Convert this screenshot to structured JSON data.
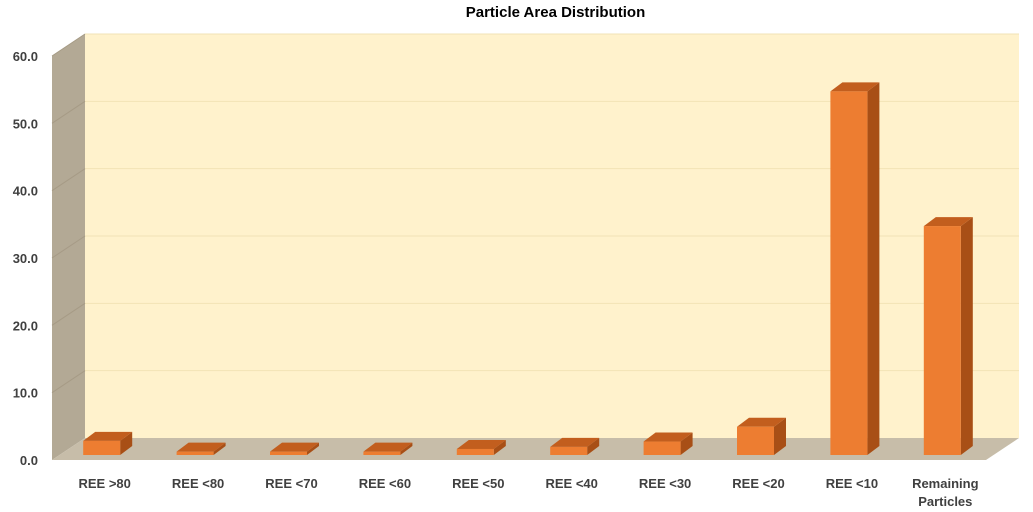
{
  "chart_data": {
    "type": "bar",
    "title": "Particle Area Distribution",
    "xlabel": "",
    "ylabel": "",
    "ylim": [
      0,
      60
    ],
    "yticks": [
      "0.0",
      "10.0",
      "20.0",
      "30.0",
      "40.0",
      "50.0",
      "60.0"
    ],
    "categories": [
      "REE >80",
      "REE <80",
      "REE <70",
      "REE <60",
      "REE <50",
      "REE <40",
      "REE <30",
      "REE <20",
      "REE <10",
      "Remaining Particles"
    ],
    "values": [
      2.1,
      0.5,
      0.5,
      0.5,
      0.9,
      1.2,
      2.0,
      4.2,
      54.0,
      34.0
    ],
    "grid": true,
    "legend": "none",
    "colors": {
      "bar_front": "#ED7D31",
      "bar_side": "#A84F16",
      "bar_top": "#C25E1E",
      "back_wall": "#FFF2CC",
      "side_wall": "#B3A995",
      "floor": "#C7BDA9",
      "gridline": "#F2E3B6"
    }
  }
}
